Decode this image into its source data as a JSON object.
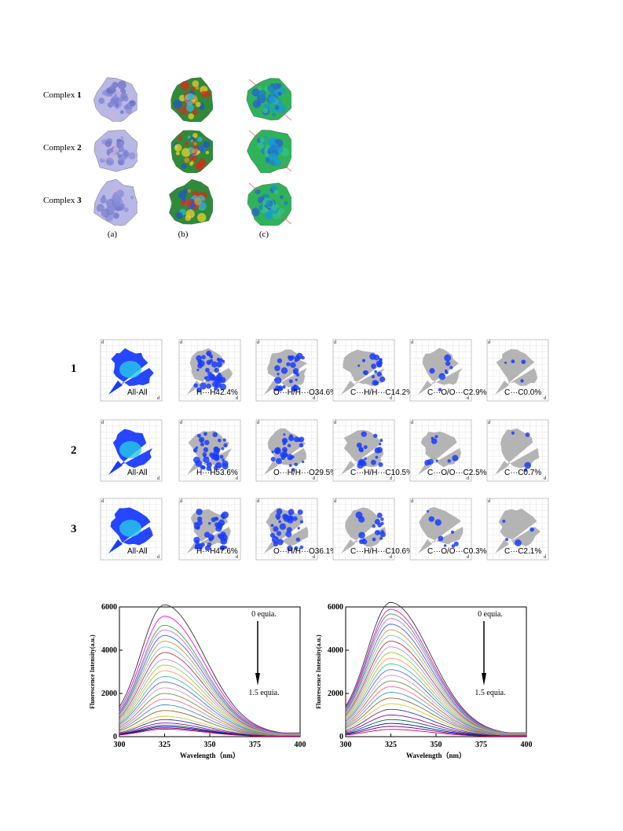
{
  "figure1": {
    "rows": [
      {
        "prefix": "Complex ",
        "number": "1"
      },
      {
        "prefix": "Complex ",
        "number": "2"
      },
      {
        "prefix": "Complex ",
        "number": "3"
      }
    ],
    "columns": [
      "(a)",
      "(b)",
      "(c)"
    ]
  },
  "figure2": {
    "rows": [
      {
        "number": "1",
        "labels": [
          "All-All",
          "H···H42.4%",
          "O···H/H···O34.6%",
          "C···H/H···C14.2%",
          "C···O/O···C2.9%",
          "C···C0.0%"
        ]
      },
      {
        "number": "2",
        "labels": [
          "All-All",
          "H···H53.6%",
          "O···H/H···O29.5%",
          "C···H/H···C10.5%",
          "C···O/O···C2.5%",
          "C···C0.7%"
        ]
      },
      {
        "number": "3",
        "labels": [
          "All-All",
          "H···H47.6%",
          "O···H/H···O36.1%",
          "C···H/H···C10.6%",
          "C···O/O···C0.3%",
          "C···C2.1%"
        ]
      }
    ],
    "axis_de": "d",
    "axis_di": "d"
  },
  "chart_data": [
    {
      "type": "line",
      "xlabel": "Wavelength（nm）",
      "ylabel": "Fluorescence Intensity(a.u.)",
      "xlim": [
        300,
        400
      ],
      "ylim": [
        0,
        6000
      ],
      "xticks": [
        300,
        325,
        350,
        375,
        400
      ],
      "yticks": [
        0,
        2000,
        4000,
        6000
      ],
      "annotation_top": "0 equia.",
      "annotation_bottom": "1.5 equia.",
      "peak_x": 325,
      "series_peaks": [
        5800,
        5300,
        4900,
        4700,
        4450,
        4200,
        3950,
        3700,
        3400,
        3150,
        2900,
        2650,
        2400,
        2150,
        1900,
        1650,
        1400,
        1150,
        900,
        750,
        600,
        500,
        440,
        380,
        330
      ]
    },
    {
      "type": "line",
      "xlabel": "Wavelength（nm）",
      "ylabel": "Fluorescence Intensity(a.u.)",
      "xlim": [
        300,
        400
      ],
      "ylim": [
        0,
        6000
      ],
      "xticks": [
        300,
        325,
        350,
        375,
        400
      ],
      "yticks": [
        0,
        2000,
        4000,
        6000
      ],
      "annotation_top": "0 equia.",
      "annotation_bottom": "1.5 equia.",
      "peak_x": 325,
      "series_peaks": [
        5900,
        5600,
        5400,
        5200,
        4950,
        4700,
        4450,
        4200,
        3950,
        3700,
        3450,
        3200,
        2950,
        2700,
        2450,
        2200,
        1950,
        1700,
        1450,
        1200,
        950,
        750,
        580,
        450,
        320
      ]
    }
  ],
  "colors": {
    "series": [
      "#333333",
      "#ff00ff",
      "#33aa33",
      "#cc66ff",
      "#3366ff",
      "#cc9933",
      "#66cccc",
      "#cc3333",
      "#9999ff",
      "#99cc33",
      "#ff9966",
      "#33cc99",
      "#6666cc",
      "#cc99cc",
      "#669933",
      "#ff6699",
      "#3399cc",
      "#996633",
      "#cccc33",
      "#3333cc",
      "#990099",
      "#006633",
      "#0000cc",
      "#660066",
      "#cc0066"
    ],
    "fp_blue": "#1a3cff",
    "fp_grey": "#b4b4b4"
  }
}
